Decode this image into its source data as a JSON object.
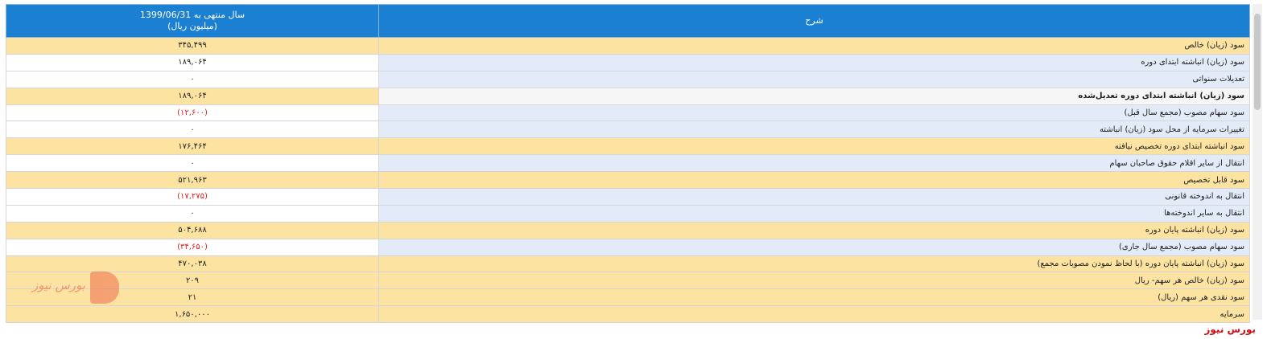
{
  "table": {
    "header": {
      "period": "سال منتهی به 1399/06/31",
      "unit": "(میلیون ریال)",
      "description": "شرح"
    },
    "rows": [
      [
        "سود (زیان) خالص",
        "۳۴۵,۴۹۹"
      ],
      [
        "سود (زیان) انباشته ابتدای دوره",
        "۱۸۹,۰۶۴"
      ],
      [
        "تعدیلات سنواتی",
        "۰"
      ],
      [
        "سود (زیان) انباشته ابتدای دوره تعدیل‌شده",
        "۱۸۹,۰۶۴"
      ],
      [
        "سود سهام مصوب (مجمع سال قبل)",
        "(۱۲,۶۰۰)"
      ],
      [
        "تغییرات سرمایه از محل سود (زیان) انباشته",
        "۰"
      ],
      [
        "سود انباشته ابتدای دوره تخصیص نیافته",
        "۱۷۶,۴۶۴"
      ],
      [
        "انتقال از سایر اقلام حقوق صاحبان سهام",
        "۰"
      ],
      [
        "سود قابل تخصیص",
        "۵۲۱,۹۶۳"
      ],
      [
        "انتقال به اندوخته قانونی",
        "(۱۷,۲۷۵)"
      ],
      [
        "انتقال به سایر اندوخته‌ها",
        "۰"
      ],
      [
        "سود (زیان) انباشته پایان دوره",
        "۵۰۴,۶۸۸"
      ],
      [
        "سود سهام مصوب (مجمع سال جاری)",
        "(۳۴,۶۵۰)"
      ],
      [
        "سود (زیان) انباشته پایان دوره (با لحاظ نمودن مصوبات مجمع)",
        "۴۷۰,۰۳۸"
      ],
      [
        "سود (زیان) خالص هر سهم- ریال",
        "۲۰۹"
      ],
      [
        "سود نقدی هر سهم (ریال)",
        "۲۱"
      ],
      [
        "سرمایه",
        "۱,۶۵۰,۰۰۰"
      ]
    ]
  },
  "watermark": "بورس نیوز",
  "footer": "بورس نیوز"
}
